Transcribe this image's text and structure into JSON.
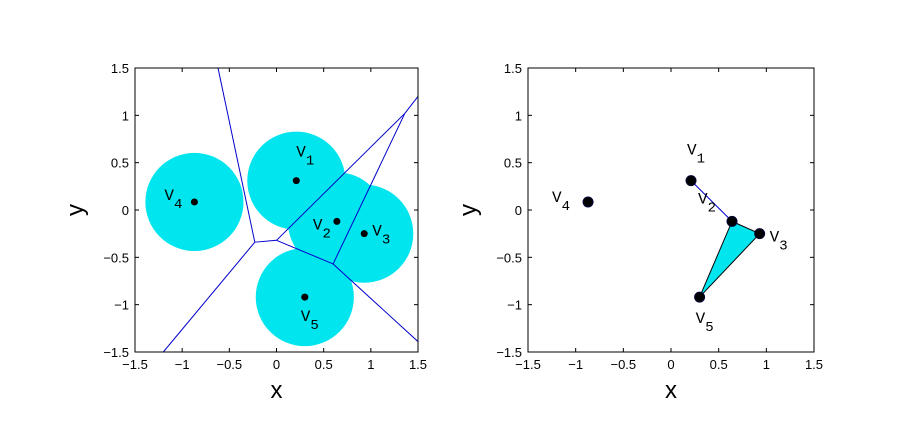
{
  "chart_data": [
    {
      "type": "voronoi",
      "xlabel": "x",
      "ylabel": "y",
      "xlim": [
        -1.5,
        1.5
      ],
      "ylim": [
        -1.5,
        1.5
      ],
      "xticks": [
        {
          "value": -1.5,
          "label": "−1.5"
        },
        {
          "value": -1,
          "label": "−1"
        },
        {
          "value": -0.5,
          "label": "−0.5"
        },
        0,
        0.5,
        1,
        1.5
      ],
      "yticks": [
        {
          "value": -1.5,
          "label": "−1.5"
        },
        {
          "value": -1,
          "label": "−1"
        },
        {
          "value": -0.5,
          "label": "−0.5"
        },
        0,
        0.5,
        1,
        1.5
      ],
      "points": [
        {
          "name": "V",
          "sub": "1",
          "x": 0.21,
          "y": 0.31
        },
        {
          "name": "V",
          "sub": "2",
          "x": 0.64,
          "y": -0.12
        },
        {
          "name": "V",
          "sub": "3",
          "x": 0.93,
          "y": -0.25
        },
        {
          "name": "V",
          "sub": "4",
          "x": -0.87,
          "y": 0.085
        },
        {
          "name": "V",
          "sub": "5",
          "x": 0.3,
          "y": -0.92
        }
      ],
      "circle_radius": 0.52,
      "circle_color": "#00e5ee",
      "edge_color": "#0000cc",
      "voronoi_edges": [
        [
          -0.62,
          1.5,
          -0.23,
          -0.34
        ],
        [
          -0.23,
          -0.34,
          -1.2,
          -1.5
        ],
        [
          -0.23,
          -0.34,
          0.0,
          -0.32
        ],
        [
          0.0,
          -0.32,
          1.36,
          1.02
        ],
        [
          0.0,
          -0.32,
          0.6,
          -0.57
        ],
        [
          1.36,
          1.02,
          1.5,
          1.2
        ],
        [
          1.36,
          1.02,
          0.6,
          -0.57
        ],
        [
          0.6,
          -0.57,
          1.5,
          -1.39
        ]
      ]
    },
    {
      "type": "delaunay",
      "xlabel": "x",
      "ylabel": "y",
      "xlim": [
        -1.5,
        1.5
      ],
      "ylim": [
        -1.5,
        1.5
      ],
      "xticks": [
        {
          "value": -1.5,
          "label": "−1.5"
        },
        {
          "value": -1,
          "label": "−1"
        },
        {
          "value": -0.5,
          "label": "−0.5"
        },
        0,
        0.5,
        1,
        1.5
      ],
      "yticks": [
        {
          "value": -1.5,
          "label": "−1.5"
        },
        {
          "value": -1,
          "label": "−1"
        },
        {
          "value": -0.5,
          "label": "−0.5"
        },
        0,
        0.5,
        1,
        1.5
      ],
      "points": [
        {
          "name": "V",
          "sub": "1",
          "x": 0.21,
          "y": 0.31
        },
        {
          "name": "V",
          "sub": "2",
          "x": 0.64,
          "y": -0.12
        },
        {
          "name": "V",
          "sub": "3",
          "x": 0.93,
          "y": -0.25
        },
        {
          "name": "V",
          "sub": "4",
          "x": -0.87,
          "y": 0.085
        },
        {
          "name": "V",
          "sub": "5",
          "x": 0.3,
          "y": -0.92
        }
      ],
      "fill_color": "#00e5ee",
      "edge_color": "#0000cc",
      "links": [
        [
          0,
          1
        ]
      ],
      "triangle": [
        1,
        2,
        4
      ]
    }
  ]
}
